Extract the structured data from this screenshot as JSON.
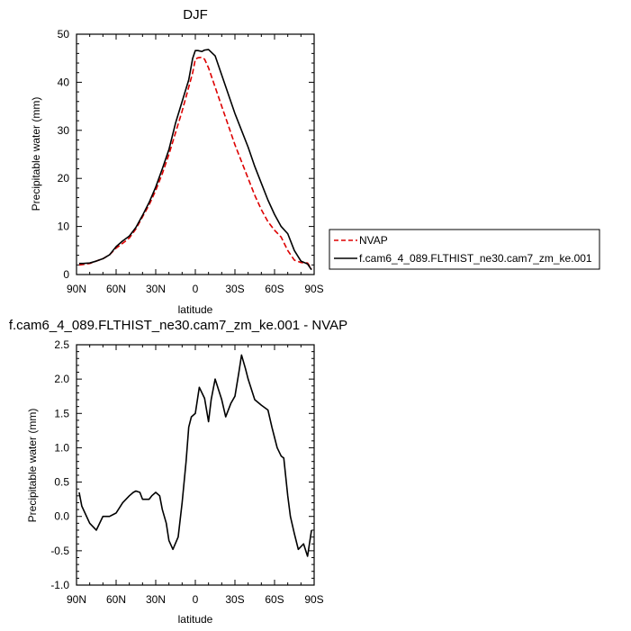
{
  "chart_data": [
    {
      "type": "line",
      "title": "DJF",
      "xlabel": "latitude",
      "ylabel": "Precipitable water (mm)",
      "xlim": [
        90,
        -90
      ],
      "ylim": [
        0,
        50
      ],
      "xticks": [
        90,
        60,
        30,
        0,
        -30,
        -60,
        -90
      ],
      "xtick_labels": [
        "90N",
        "60N",
        "30N",
        "0",
        "30S",
        "60S",
        "90S"
      ],
      "yticks": [
        0,
        10,
        20,
        30,
        40,
        50
      ],
      "ytick_labels": [
        "0",
        "10",
        "20",
        "30",
        "40",
        "50"
      ],
      "grid": false,
      "legend_position": "right",
      "series": [
        {
          "name": "NVAP",
          "color": "#dd0000",
          "dash": "dashed",
          "x": [
            88,
            85,
            80,
            75,
            70,
            65,
            60,
            55,
            50,
            45,
            40,
            35,
            30,
            25,
            20,
            15,
            10,
            5,
            2,
            0,
            -2,
            -5,
            -7,
            -10,
            -15,
            -20,
            -25,
            -30,
            -35,
            -40,
            -45,
            -50,
            -55,
            -60,
            -65,
            -70,
            -75,
            -80,
            -85,
            -88
          ],
          "y": [
            2.0,
            2.1,
            2.3,
            2.8,
            3.3,
            4.1,
            5.5,
            6.5,
            7.6,
            9.5,
            12.0,
            14.5,
            17.5,
            21.0,
            25.0,
            29.5,
            34.0,
            39.0,
            42.0,
            44.8,
            45.1,
            45.2,
            44.8,
            43.0,
            39.0,
            35.0,
            31.0,
            27.0,
            23.5,
            20.0,
            16.5,
            13.5,
            11.0,
            9.2,
            7.8,
            5.0,
            3.0,
            2.5,
            2.4,
            1.2
          ]
        },
        {
          "name": "f.cam6_4_089.FLTHIST_ne30.cam7_zm_ke.001",
          "color": "#000000",
          "dash": "solid",
          "x": [
            88,
            85,
            80,
            75,
            70,
            65,
            60,
            55,
            50,
            45,
            40,
            35,
            30,
            25,
            20,
            15,
            10,
            5,
            2,
            0,
            -2,
            -5,
            -7,
            -10,
            -15,
            -20,
            -25,
            -30,
            -35,
            -40,
            -45,
            -50,
            -55,
            -60,
            -65,
            -70,
            -75,
            -80,
            -85,
            -88
          ],
          "y": [
            2.3,
            2.3,
            2.4,
            2.8,
            3.3,
            4.1,
            5.8,
            7.0,
            8.0,
            9.8,
            12.3,
            15.0,
            18.2,
            22.0,
            26.0,
            31.5,
            36.0,
            40.5,
            45.0,
            46.6,
            46.6,
            46.4,
            46.7,
            46.8,
            45.5,
            41.5,
            37.5,
            33.5,
            30.0,
            26.5,
            22.5,
            19.0,
            15.5,
            12.5,
            10.0,
            8.5,
            5.0,
            2.8,
            2.2,
            1.0
          ]
        }
      ]
    },
    {
      "type": "line",
      "title": "f.cam6_4_089.FLTHIST_ne30.cam7_zm_ke.001 - NVAP",
      "xlabel": "latitude",
      "ylabel": "Precipitable water (mm)",
      "xlim": [
        90,
        -90
      ],
      "ylim": [
        -1.0,
        2.5
      ],
      "xticks": [
        90,
        60,
        30,
        0,
        -30,
        -60,
        -90
      ],
      "xtick_labels": [
        "90N",
        "60N",
        "30N",
        "0",
        "30S",
        "60S",
        "90S"
      ],
      "yticks": [
        -1.0,
        -0.5,
        0.0,
        0.5,
        1.0,
        1.5,
        2.0,
        2.5
      ],
      "ytick_labels": [
        "-1.0",
        "-0.5",
        "0.0",
        "0.5",
        "1.0",
        "1.5",
        "2.0",
        "2.5"
      ],
      "grid": false,
      "series": [
        {
          "color": "#000000",
          "dash": "solid",
          "x": [
            88,
            86,
            80,
            75,
            70,
            65,
            60,
            55,
            50,
            47,
            45,
            42,
            40,
            35,
            33,
            30,
            27,
            25,
            22,
            20,
            17,
            13,
            10,
            7,
            5,
            3,
            0,
            -3,
            -7,
            -10,
            -12,
            -15,
            -20,
            -23,
            -25,
            -27,
            -30,
            -33,
            -35,
            -38,
            -40,
            -45,
            -50,
            -55,
            -58,
            -60,
            -62,
            -65,
            -67,
            -70,
            -72,
            -75,
            -78,
            -82,
            -85,
            -88
          ],
          "y": [
            0.35,
            0.15,
            -0.1,
            -0.2,
            0.0,
            0.0,
            0.05,
            0.2,
            0.3,
            0.35,
            0.37,
            0.35,
            0.25,
            0.25,
            0.3,
            0.35,
            0.3,
            0.1,
            -0.1,
            -0.35,
            -0.48,
            -0.3,
            0.2,
            0.8,
            1.3,
            1.45,
            1.5,
            1.88,
            1.72,
            1.38,
            1.7,
            2.0,
            1.7,
            1.45,
            1.55,
            1.65,
            1.75,
            2.1,
            2.35,
            2.15,
            2.0,
            1.7,
            1.62,
            1.55,
            1.3,
            1.15,
            1.0,
            0.88,
            0.85,
            0.3,
            0.0,
            -0.25,
            -0.48,
            -0.4,
            -0.58,
            -0.2
          ]
        }
      ]
    }
  ]
}
